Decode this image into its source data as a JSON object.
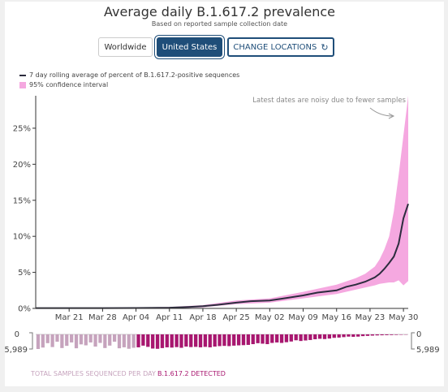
{
  "header": {
    "title": "Average daily B.1.617.2 prevalence",
    "subtitle": "Based on reported sample collection date"
  },
  "controls": {
    "worldwide": "Worldwide",
    "united_states": "United States",
    "change_locations": "CHANGE LOCATIONS",
    "refresh_icon": "refresh-icon"
  },
  "legend": {
    "line": "7 day rolling average of percent of B.1.617.2-positive sequences",
    "band": "95% confidence interval"
  },
  "colors": {
    "line": "#2c2c3e",
    "band": "#f5a8e0",
    "detected": "#a8166f",
    "total": "#c6a3bd",
    "active_button": "#1f4e79"
  },
  "annotation": "Latest dates are noisy due to fewer samples",
  "bottom_labels": {
    "total": "TOTAL SAMPLES SEQUENCED PER DAY",
    "detected": "B.1.617.2 DETECTED",
    "top_left": "0",
    "bottom_left": "5,989",
    "top_right": "0",
    "bottom_right": "5,989"
  },
  "chart_data": {
    "type": "line",
    "title": "Average daily B.1.617.2 prevalence",
    "subtitle": "Based on reported sample collection date",
    "x_start": "2021-03-14",
    "x_end": "2021-05-31",
    "x_ticks": [
      "Mar 21",
      "Mar 28",
      "Apr 04",
      "Apr 11",
      "Apr 18",
      "Apr 25",
      "May 02",
      "May 09",
      "May 16",
      "May 23",
      "May 30"
    ],
    "y_ticks": [
      "0%",
      "5%",
      "10%",
      "15%",
      "20%",
      "25%"
    ],
    "ylim": [
      0,
      29.5
    ],
    "grid": false,
    "legend_position": "top-left",
    "series": [
      {
        "name": "7 day rolling average of percent of B.1.617.2-positive sequences",
        "points": [
          [
            "2021-03-14",
            0.05
          ],
          [
            "2021-03-21",
            0.05
          ],
          [
            "2021-03-28",
            0.05
          ],
          [
            "2021-04-04",
            0.06
          ],
          [
            "2021-04-11",
            0.1
          ],
          [
            "2021-04-15",
            0.2
          ],
          [
            "2021-04-18",
            0.3
          ],
          [
            "2021-04-21",
            0.5
          ],
          [
            "2021-04-25",
            0.8
          ],
          [
            "2021-04-28",
            1.0
          ],
          [
            "2021-05-02",
            1.1
          ],
          [
            "2021-05-05",
            1.4
          ],
          [
            "2021-05-09",
            1.8
          ],
          [
            "2021-05-12",
            2.2
          ],
          [
            "2021-05-16",
            2.5
          ],
          [
            "2021-05-18",
            3.0
          ],
          [
            "2021-05-20",
            3.3
          ],
          [
            "2021-05-22",
            3.7
          ],
          [
            "2021-05-24",
            4.3
          ],
          [
            "2021-05-25",
            4.8
          ],
          [
            "2021-05-26",
            5.5
          ],
          [
            "2021-05-27",
            6.3
          ],
          [
            "2021-05-28",
            7.2
          ],
          [
            "2021-05-29",
            9.0
          ],
          [
            "2021-05-30",
            12.5
          ],
          [
            "2021-05-31",
            14.5
          ]
        ]
      },
      {
        "name": "95% confidence interval",
        "band": [
          [
            "2021-03-14",
            0.0,
            0.1
          ],
          [
            "2021-03-21",
            0.0,
            0.1
          ],
          [
            "2021-03-28",
            0.0,
            0.1
          ],
          [
            "2021-04-04",
            0.0,
            0.15
          ],
          [
            "2021-04-11",
            0.0,
            0.2
          ],
          [
            "2021-04-18",
            0.15,
            0.45
          ],
          [
            "2021-04-25",
            0.6,
            1.1
          ],
          [
            "2021-05-02",
            0.8,
            1.4
          ],
          [
            "2021-05-09",
            1.4,
            2.3
          ],
          [
            "2021-05-16",
            2.0,
            3.3
          ],
          [
            "2021-05-20",
            2.6,
            4.2
          ],
          [
            "2021-05-22",
            2.9,
            4.8
          ],
          [
            "2021-05-24",
            3.2,
            5.8
          ],
          [
            "2021-05-25",
            3.4,
            6.8
          ],
          [
            "2021-05-26",
            3.5,
            8.2
          ],
          [
            "2021-05-27",
            3.6,
            10.0
          ],
          [
            "2021-05-28",
            3.6,
            13.5
          ],
          [
            "2021-05-29",
            3.9,
            18.5
          ],
          [
            "2021-05-30",
            3.2,
            24.0
          ],
          [
            "2021-05-31",
            3.8,
            29.5
          ]
        ]
      }
    ],
    "samples": {
      "max": 5989,
      "total": [
        5989,
        5400,
        3600,
        5200,
        3000,
        5600,
        4700,
        3300,
        5700,
        4100,
        4500,
        3300,
        5000,
        3500,
        5600,
        4600,
        3000,
        5700,
        5300,
        5900,
        5500,
        5300,
        4600,
        5100,
        5800,
        5900,
        5600,
        5300,
        5400,
        5200,
        5500,
        5000,
        5200,
        5100,
        5300,
        5100,
        5300,
        5000,
        4800,
        4700,
        4800,
        4600,
        4500,
        4400,
        4300,
        4000,
        3600,
        3800,
        4000,
        3500,
        3300,
        3500,
        3200,
        2900,
        2400,
        2700,
        2500,
        2300,
        2000,
        1800,
        1900,
        1700,
        1400,
        1300,
        1100,
        900,
        1000,
        900,
        700,
        600,
        500,
        400,
        350,
        300,
        250,
        200,
        150,
        100
      ],
      "detected": [
        0,
        0,
        0,
        0,
        0,
        0,
        0,
        0,
        0,
        0,
        0,
        0,
        0,
        0,
        0,
        0,
        0,
        0,
        0,
        0,
        0,
        5300,
        4600,
        5100,
        5800,
        5900,
        5600,
        5300,
        5400,
        5200,
        5500,
        5000,
        5200,
        5100,
        5300,
        5100,
        5300,
        5000,
        4800,
        4700,
        4800,
        4600,
        4500,
        4400,
        4300,
        4000,
        3600,
        3800,
        4000,
        3500,
        3300,
        3500,
        3200,
        2900,
        2400,
        2700,
        2500,
        2300,
        2000,
        1800,
        1900,
        1700,
        1400,
        1300,
        1100,
        900,
        1000,
        900,
        700,
        600,
        500,
        400,
        350,
        300,
        250,
        200,
        150,
        100
      ]
    }
  }
}
